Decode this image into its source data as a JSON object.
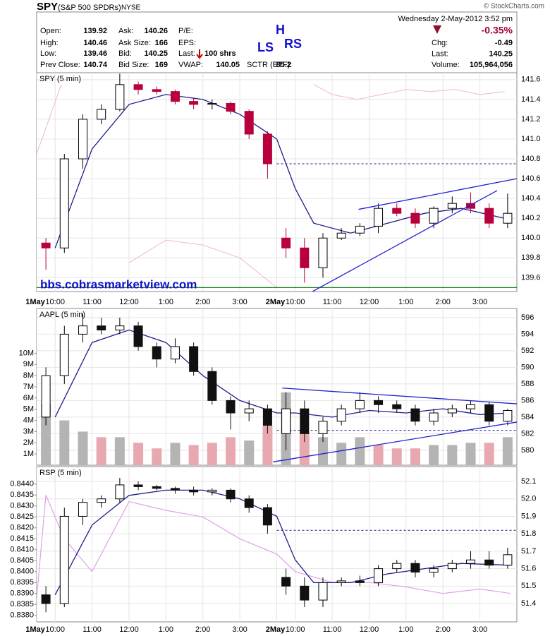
{
  "header": {
    "symbol": "SPY",
    "name": "(S&P 500 SPDRs)",
    "exchange": "NYSE",
    "datetime": "Wednesday  2-May-2012  3:52 pm",
    "source": "© StockCharts.com",
    "fields": [
      {
        "label": "Open:",
        "value": 139.92
      },
      {
        "label": "High:",
        "value": 140.46
      },
      {
        "label": "Low:",
        "value": 139.46
      },
      {
        "label": "Prev Close:",
        "value": 140.74
      },
      {
        "label": "Ask:",
        "value": 140.26
      },
      {
        "label": "Ask Size:",
        "value": 166
      },
      {
        "label": "Bid:",
        "value": 140.25
      },
      {
        "label": "Bid Size:",
        "value": 169
      },
      {
        "label": "P/E:"
      },
      {
        "label": "EPS:"
      },
      {
        "label": "Last:",
        "value": "100 shrs"
      },
      {
        "label": "VWAP:",
        "value": 140.05
      },
      {
        "label": "SCTR (ETF):",
        "value": 85.2
      }
    ],
    "change_pct": "-0.35%",
    "right_fields": [
      {
        "label": "Chg:",
        "value": -0.49
      },
      {
        "label": "Last:",
        "value": 140.25
      },
      {
        "label": "Volume:",
        "value": "105,964,056"
      }
    ],
    "pattern_labels": {
      "ls": "LS",
      "h": "H",
      "rs": "RS"
    }
  },
  "chart_data": [
    {
      "type": "candlestick",
      "title": "SPY (5 min)",
      "annotation": "bbs.cobrasmarketview.com",
      "xlim": [
        0,
        780
      ],
      "xticks": [
        {
          "value": 0,
          "label": "1May"
        },
        {
          "value": 30,
          "label": "10:00"
        },
        {
          "value": 90,
          "label": "11:00"
        },
        {
          "value": 150,
          "label": "12:00"
        },
        {
          "value": 210,
          "label": "1:00"
        },
        {
          "value": 270,
          "label": "2:00"
        },
        {
          "value": 330,
          "label": "3:00"
        },
        {
          "value": 390,
          "label": "2May"
        },
        {
          "value": 420,
          "label": "10:00"
        },
        {
          "value": 480,
          "label": "11:00"
        },
        {
          "value": 540,
          "label": "12:00"
        },
        {
          "value": 600,
          "label": "1:00"
        },
        {
          "value": 660,
          "label": "2:00"
        },
        {
          "value": 720,
          "label": "3:00"
        }
      ],
      "ylim": [
        139.46,
        141.67
      ],
      "yticks": [
        139.6,
        139.8,
        {
          "value": 140,
          "label": "140.0"
        },
        140.2,
        140.4,
        140.6,
        140.8,
        {
          "value": 141,
          "label": "141.0"
        },
        141.2,
        141.4,
        141.6
      ],
      "up_color": "#ffffff",
      "down_color": "#b8003c",
      "x": [
        15,
        45,
        75,
        105,
        135,
        165,
        195,
        225,
        255,
        285,
        315,
        345,
        375,
        405,
        435,
        465,
        495,
        525,
        555,
        585,
        615,
        645,
        675,
        705,
        735,
        765
      ],
      "open": [
        139.95,
        139.9,
        140.8,
        141.2,
        141.3,
        141.55,
        141.5,
        141.48,
        141.38,
        141.35,
        141.36,
        141.28,
        141.05,
        140.0,
        139.9,
        139.7,
        140.0,
        140.05,
        140.12,
        140.3,
        140.25,
        140.15,
        140.3,
        140.35,
        140.3,
        140.15
      ],
      "high": [
        140.0,
        140.85,
        141.25,
        141.35,
        141.66,
        141.58,
        141.53,
        141.5,
        141.42,
        141.4,
        141.38,
        141.3,
        141.08,
        140.1,
        140.0,
        140.05,
        140.1,
        140.15,
        140.35,
        140.35,
        140.3,
        140.32,
        140.42,
        140.46,
        140.35,
        140.45
      ],
      "low": [
        139.68,
        139.85,
        140.7,
        141.15,
        141.28,
        141.45,
        141.45,
        141.35,
        141.3,
        141.3,
        141.25,
        141.0,
        140.6,
        139.8,
        139.55,
        139.6,
        139.98,
        140.02,
        140.05,
        140.22,
        140.1,
        140.1,
        140.25,
        140.25,
        140.1,
        140.1
      ],
      "close": [
        139.9,
        140.8,
        141.2,
        141.3,
        141.55,
        141.5,
        141.48,
        141.38,
        141.35,
        141.36,
        141.28,
        141.05,
        140.75,
        139.9,
        139.7,
        140.0,
        140.05,
        140.12,
        140.3,
        140.25,
        140.15,
        140.3,
        140.35,
        140.3,
        140.15,
        140.25
      ],
      "ma": {
        "color": "#1c1c8c",
        "x": [
          30,
          90,
          150,
          210,
          270,
          330,
          390,
          420,
          450,
          510,
          570,
          630,
          690,
          760
        ],
        "values": [
          139.9,
          140.9,
          141.35,
          141.45,
          141.4,
          141.25,
          141.0,
          140.5,
          140.15,
          140.05,
          140.15,
          140.25,
          140.3,
          140.2
        ]
      },
      "bands": [
        {
          "color": "#f0b8c8",
          "x": [
            0,
            20,
            40,
            420,
            450,
            480,
            520,
            560,
            600,
            640,
            680,
            720,
            760
          ],
          "values": [
            140.85,
            141.2,
            141.55,
            null,
            141.55,
            141.45,
            141.4,
            141.45,
            141.5,
            141.48,
            141.5,
            141.45,
            141.48
          ]
        },
        {
          "color": "#f0b8c8",
          "x": [
            150,
            210,
            270,
            330,
            390
          ],
          "values": [
            139.75,
            139.98,
            139.93,
            139.8,
            139.5
          ]
        }
      ],
      "level": {
        "value": 140.75,
        "x": [
          390,
          780
        ],
        "color": "#1c1c8c"
      },
      "support": {
        "value": 139.5,
        "color": "#208020"
      },
      "trendlines": [
        {
          "color": "#2020d0",
          "x": [
            523,
            780
          ],
          "values": [
            140.29,
            140.6
          ]
        },
        {
          "color": "#2020d0",
          "x": [
            448,
            748
          ],
          "values": [
            139.46,
            140.48
          ]
        }
      ]
    },
    {
      "type": "candlestick",
      "title": "AAPL (5 min)",
      "xlim": [
        0,
        780
      ],
      "xticks": [
        0,
        30,
        90,
        150,
        210,
        270,
        330,
        390,
        420,
        480,
        540,
        600,
        660,
        720
      ],
      "ylim": [
        578.2,
        597.1
      ],
      "yticks": [
        580,
        582,
        584,
        586,
        588,
        590,
        592,
        594,
        596
      ],
      "y2lim": [
        0,
        14000000
      ],
      "y2ticks": [
        {
          "value": 1000000,
          "label": "1M"
        },
        {
          "value": 2000000,
          "label": "2M"
        },
        {
          "value": 3000000,
          "label": "3M"
        },
        {
          "value": 4000000,
          "label": "4M"
        },
        {
          "value": 5000000,
          "label": "5M"
        },
        {
          "value": 6000000,
          "label": "6M"
        },
        {
          "value": 7000000,
          "label": "7M"
        },
        {
          "value": 8000000,
          "label": "8M"
        },
        {
          "value": 9000000,
          "label": "9M"
        },
        {
          "value": 10000000,
          "label": "10M"
        }
      ],
      "up_color": "#ffffff",
      "down_color": "#111111",
      "volume_colors": [
        "#b4b4b4",
        "#e8a8b0"
      ],
      "x": [
        15,
        45,
        75,
        105,
        135,
        165,
        195,
        225,
        255,
        285,
        315,
        345,
        375,
        405,
        435,
        465,
        495,
        525,
        555,
        585,
        615,
        645,
        675,
        705,
        735,
        765
      ],
      "open": [
        584,
        589,
        594,
        595,
        594.5,
        595,
        592.5,
        591,
        592.5,
        589.5,
        586,
        584.5,
        585,
        582,
        585,
        582,
        583.5,
        585,
        586,
        585.5,
        585,
        583.5,
        584.5,
        585,
        585.5,
        583.5
      ],
      "high": [
        590,
        595,
        596.5,
        596,
        596,
        595.5,
        593,
        593.5,
        593,
        590,
        586.5,
        586,
        585.5,
        587,
        586,
        584,
        585.5,
        587,
        586.5,
        586,
        585.5,
        585,
        585.5,
        586,
        585.8,
        585
      ],
      "low": [
        583,
        588,
        593,
        594,
        594,
        592,
        590,
        590.5,
        589,
        585.5,
        582.5,
        583.5,
        582,
        580,
        581,
        581,
        583,
        584.5,
        584.5,
        584.5,
        583,
        583,
        584,
        584.5,
        583,
        583
      ],
      "close": [
        589,
        594,
        595,
        594.5,
        595,
        592.5,
        591,
        592.5,
        589.5,
        586,
        584.5,
        585,
        583,
        585,
        582,
        583.5,
        585,
        586,
        585.5,
        585,
        583.5,
        584.5,
        585,
        585.5,
        583.5,
        584.8
      ],
      "volume": [
        5500000,
        4000000,
        3000000,
        2500000,
        2500000,
        2000000,
        1500000,
        2000000,
        1800000,
        2000000,
        2500000,
        2200000,
        3500000,
        6500000,
        3000000,
        2500000,
        2000000,
        2500000,
        1800000,
        1500000,
        1500000,
        1800000,
        1800000,
        2000000,
        2000000,
        2500000
      ],
      "ma": {
        "color": "#1c1c8c",
        "x": [
          30,
          90,
          150,
          210,
          270,
          330,
          390,
          420,
          480,
          540,
          600,
          660,
          720,
          770
        ],
        "values": [
          584,
          593,
          594.5,
          593,
          589,
          586,
          584.5,
          584.5,
          584,
          584.8,
          584.5,
          585,
          584.3,
          584.5
        ]
      },
      "level": {
        "value": 582.4,
        "x": [
          390,
          780
        ],
        "color": "#1c1c8c"
      },
      "trendlines": [
        {
          "color": "#2020d0",
          "x": [
            399,
            780
          ],
          "values": [
            587.5,
            585.6
          ]
        },
        {
          "color": "#2020d0",
          "x": [
            384,
            780
          ],
          "values": [
            578.6,
            583.4
          ]
        }
      ]
    },
    {
      "type": "candlestick",
      "title": "RSP (5 min)",
      "xlim": [
        0,
        780
      ],
      "xticks": [
        {
          "value": 0,
          "label": "1May"
        },
        {
          "value": 30,
          "label": "10:00"
        },
        {
          "value": 90,
          "label": "11:00"
        },
        {
          "value": 150,
          "label": "12:00"
        },
        {
          "value": 210,
          "label": "1:00"
        },
        {
          "value": 270,
          "label": "2:00"
        },
        {
          "value": 330,
          "label": "3:00"
        },
        {
          "value": 390,
          "label": "2May"
        },
        {
          "value": 420,
          "label": "10:00"
        },
        {
          "value": 480,
          "label": "11:00"
        },
        {
          "value": 540,
          "label": "12:00"
        },
        {
          "value": 600,
          "label": "1:00"
        },
        {
          "value": 660,
          "label": "2:00"
        },
        {
          "value": 720,
          "label": "3:00"
        }
      ],
      "ylim": [
        51.295,
        52.185
      ],
      "yticks": [
        51.4,
        51.5,
        51.6,
        51.7,
        51.8,
        51.9,
        {
          "value": 52,
          "label": "52.0"
        },
        52.1
      ],
      "y2lim": [
        0.8377,
        0.8448
      ],
      "y2ticks": [
        {
          "value": 0.838,
          "label": "0.8380"
        },
        {
          "value": 0.8385,
          "label": "0.8385"
        },
        {
          "value": 0.839,
          "label": "0.8390"
        },
        {
          "value": 0.8395,
          "label": "0.8395"
        },
        {
          "value": 0.84,
          "label": "0.8400"
        },
        {
          "value": 0.8405,
          "label": "0.8405"
        },
        {
          "value": 0.841,
          "label": "0.8410"
        },
        {
          "value": 0.8415,
          "label": "0.8415"
        },
        {
          "value": 0.842,
          "label": "0.8420"
        },
        {
          "value": 0.8425,
          "label": "0.8425"
        },
        {
          "value": 0.843,
          "label": "0.8430"
        },
        {
          "value": 0.8435,
          "label": "0.8435"
        },
        {
          "value": 0.844,
          "label": "0.8440"
        }
      ],
      "up_color": "#ffffff",
      "down_color": "#111111",
      "x": [
        15,
        45,
        75,
        105,
        135,
        165,
        195,
        225,
        255,
        285,
        315,
        345,
        375,
        405,
        435,
        465,
        495,
        525,
        555,
        585,
        615,
        645,
        675,
        705,
        735,
        765
      ],
      "open": [
        51.45,
        51.4,
        51.9,
        51.98,
        52.0,
        52.08,
        52.07,
        52.06,
        52.05,
        52.04,
        52.05,
        52.0,
        51.95,
        51.55,
        51.5,
        51.42,
        51.52,
        51.53,
        51.52,
        51.6,
        51.63,
        51.58,
        51.6,
        51.63,
        51.65,
        51.62
      ],
      "high": [
        51.5,
        51.95,
        52.0,
        52.02,
        52.12,
        52.1,
        52.08,
        52.07,
        52.07,
        52.06,
        52.06,
        52.02,
        51.97,
        51.6,
        51.55,
        51.55,
        51.55,
        51.56,
        51.62,
        51.65,
        51.65,
        51.62,
        51.65,
        51.7,
        51.7,
        51.72
      ],
      "low": [
        51.35,
        51.38,
        51.85,
        51.95,
        51.98,
        52.05,
        52.05,
        52.03,
        52.02,
        52.02,
        51.98,
        51.92,
        51.8,
        51.45,
        51.38,
        51.38,
        51.5,
        51.5,
        51.5,
        51.58,
        51.55,
        51.55,
        51.58,
        51.6,
        51.6,
        51.6
      ],
      "close": [
        51.4,
        51.9,
        51.98,
        52.0,
        52.08,
        52.07,
        52.06,
        52.05,
        52.04,
        52.05,
        52.0,
        51.95,
        51.85,
        51.5,
        51.42,
        51.52,
        51.53,
        51.52,
        51.6,
        51.63,
        51.58,
        51.6,
        51.63,
        51.65,
        51.62,
        51.68
      ],
      "ratio": {
        "color": "#e0a0e8",
        "axis": "y2",
        "x": [
          0,
          15,
          45,
          90,
          150,
          210,
          270,
          330,
          390,
          420,
          480,
          540,
          600,
          660,
          720,
          770
        ],
        "values": [
          0.8388,
          0.8435,
          0.8415,
          0.84,
          0.8432,
          0.8428,
          0.8425,
          0.8415,
          0.8408,
          0.84,
          0.8395,
          0.8395,
          0.8393,
          0.839,
          0.8392,
          0.839
        ]
      },
      "ma": {
        "color": "#1c1c8c",
        "x": [
          30,
          90,
          150,
          210,
          270,
          330,
          390,
          420,
          450,
          510,
          570,
          630,
          690,
          770
        ],
        "values": [
          51.45,
          51.85,
          52.02,
          52.05,
          52.05,
          52.0,
          51.9,
          51.65,
          51.52,
          51.52,
          51.57,
          51.6,
          51.63,
          51.62
        ]
      },
      "level": {
        "value": 51.82,
        "x": [
          390,
          780
        ],
        "color": "#1c1c8c"
      }
    }
  ]
}
